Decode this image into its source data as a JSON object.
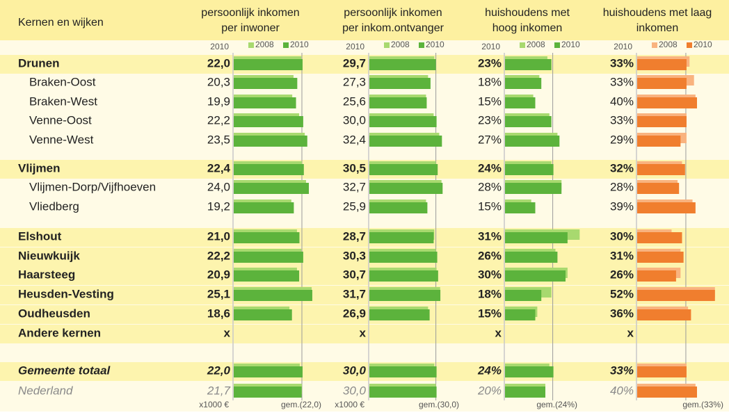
{
  "header": {
    "row_label": "Kernen en wijken",
    "columns": [
      {
        "title": [
          "persoonlijk inkomen",
          "per inwoner"
        ],
        "year_label": "2010",
        "legend": [
          "2008",
          "2010"
        ],
        "colors": [
          "#a8d96f",
          "#5cb33c"
        ],
        "unit": "x1000 €",
        "average": "gem.(22,0)"
      },
      {
        "title": [
          "persoonlijk inkomen",
          "per inkom.ontvanger"
        ],
        "year_label": "2010",
        "legend": [
          "2008",
          "2010"
        ],
        "colors": [
          "#a8d96f",
          "#5cb33c"
        ],
        "unit": "x1000 €",
        "average": "gem.(30,0)"
      },
      {
        "title": [
          "huishoudens met",
          "hoog inkomen"
        ],
        "year_label": "2010",
        "legend": [
          "2008",
          "2010"
        ],
        "colors": [
          "#a8d96f",
          "#5cb33c"
        ],
        "average": "gem.(24%)"
      },
      {
        "title": [
          "huishoudens met laag",
          "inkomen"
        ],
        "year_label": "2010",
        "legend": [
          "2008",
          "2010"
        ],
        "colors": [
          "#f9b37f",
          "#f07e2e"
        ],
        "average": "gem.(33%)"
      }
    ]
  },
  "rows": [
    {
      "name": "Drunen",
      "style": "kern",
      "cells": [
        {
          "value": 22.0,
          "label": "22,0",
          "v2008": 21.6
        },
        {
          "value": 29.7,
          "label": "29,7",
          "v2008": 29.0
        },
        {
          "value": 23,
          "label": "23%",
          "v2008": 21
        },
        {
          "value": 33,
          "label": "33%",
          "v2008": 35
        }
      ]
    },
    {
      "name": "Braken-Oost",
      "style": "wijk",
      "cells": [
        {
          "value": 20.3,
          "label": "20,3",
          "v2008": 19.1
        },
        {
          "value": 27.3,
          "label": "27,3",
          "v2008": 26.2
        },
        {
          "value": 18,
          "label": "18%",
          "v2008": 17
        },
        {
          "value": 33,
          "label": "33%",
          "v2008": 38
        }
      ]
    },
    {
      "name": "Braken-West",
      "style": "wijk",
      "cells": [
        {
          "value": 19.9,
          "label": "19,9",
          "v2008": 18.7
        },
        {
          "value": 25.6,
          "label": "25,6",
          "v2008": 25.3
        },
        {
          "value": 15,
          "label": "15%",
          "v2008": 14
        },
        {
          "value": 40,
          "label": "40%",
          "v2008": 39
        }
      ]
    },
    {
      "name": "Venne-Oost",
      "style": "wijk",
      "cells": [
        {
          "value": 22.2,
          "label": "22,2",
          "v2008": 20.9
        },
        {
          "value": 30.0,
          "label": "30,0",
          "v2008": 28.7
        },
        {
          "value": 23,
          "label": "23%",
          "v2008": 22
        },
        {
          "value": 33,
          "label": "33%",
          "v2008": 33
        }
      ]
    },
    {
      "name": "Venne-West",
      "style": "wijk",
      "cells": [
        {
          "value": 23.5,
          "label": "23,5",
          "v2008": 22.7
        },
        {
          "value": 32.4,
          "label": "32,4",
          "v2008": 31.2
        },
        {
          "value": 27,
          "label": "27%",
          "v2008": 26
        },
        {
          "value": 29,
          "label": "29%",
          "v2008": 33
        }
      ]
    },
    {
      "name": "Vlijmen",
      "style": "kern",
      "cells": [
        {
          "value": 22.4,
          "label": "22,4",
          "v2008": 21.8
        },
        {
          "value": 30.5,
          "label": "30,5",
          "v2008": 29.7
        },
        {
          "value": 24,
          "label": "24%",
          "v2008": 23
        },
        {
          "value": 32,
          "label": "32%",
          "v2008": 30
        }
      ]
    },
    {
      "name": "Vlijmen-Dorp/Vijfhoeven",
      "style": "wijk",
      "cells": [
        {
          "value": 24.0,
          "label": "24,0",
          "v2008": 23.1
        },
        {
          "value": 32.7,
          "label": "32,7",
          "v2008": 32.2
        },
        {
          "value": 28,
          "label": "28%",
          "v2008": 28
        },
        {
          "value": 28,
          "label": "28%",
          "v2008": 27
        }
      ]
    },
    {
      "name": "Vliedberg",
      "style": "wijk",
      "cells": [
        {
          "value": 19.2,
          "label": "19,2",
          "v2008": 18.4
        },
        {
          "value": 25.9,
          "label": "25,9",
          "v2008": 25.3
        },
        {
          "value": 15,
          "label": "15%",
          "v2008": 13
        },
        {
          "value": 39,
          "label": "39%",
          "v2008": 37
        }
      ]
    },
    {
      "name": "Elshout",
      "style": "kern",
      "cells": [
        {
          "value": 21.0,
          "label": "21,0",
          "v2008": 20.2
        },
        {
          "value": 28.7,
          "label": "28,7",
          "v2008": 29.0
        },
        {
          "value": 31,
          "label": "31%",
          "v2008": 37
        },
        {
          "value": 30,
          "label": "30%",
          "v2008": 23
        }
      ]
    },
    {
      "name": "Nieuwkuijk",
      "style": "kern",
      "cells": [
        {
          "value": 22.2,
          "label": "22,2",
          "v2008": 21.6
        },
        {
          "value": 30.3,
          "label": "30,3",
          "v2008": 29.7
        },
        {
          "value": 26,
          "label": "26%",
          "v2008": 25
        },
        {
          "value": 31,
          "label": "31%",
          "v2008": 29
        }
      ]
    },
    {
      "name": "Haarsteeg",
      "style": "kern",
      "cells": [
        {
          "value": 20.9,
          "label": "20,9",
          "v2008": 20.2
        },
        {
          "value": 30.7,
          "label": "30,7",
          "v2008": 30.0
        },
        {
          "value": 30,
          "label": "30%",
          "v2008": 31
        },
        {
          "value": 26,
          "label": "26%",
          "v2008": 29
        }
      ]
    },
    {
      "name": "Heusden-Vesting",
      "style": "kern",
      "cells": [
        {
          "value": 25.1,
          "label": "25,1",
          "v2008": 24.9
        },
        {
          "value": 31.7,
          "label": "31,7",
          "v2008": 31.6
        },
        {
          "value": 18,
          "label": "18%",
          "v2008": 23
        },
        {
          "value": 52,
          "label": "52%",
          "v2008": 52
        }
      ]
    },
    {
      "name": "Oudheusden",
      "style": "kern",
      "cells": [
        {
          "value": 18.6,
          "label": "18,6",
          "v2008": 17.8
        },
        {
          "value": 26.9,
          "label": "26,9",
          "v2008": 26.2
        },
        {
          "value": 15,
          "label": "15%",
          "v2008": 16
        },
        {
          "value": 36,
          "label": "36%",
          "v2008": 34
        }
      ]
    },
    {
      "name": "Andere kernen",
      "style": "kern",
      "cells": [
        {
          "label": "x"
        },
        {
          "label": "x"
        },
        {
          "label": "x"
        },
        {
          "label": "x"
        }
      ]
    },
    {
      "name": "Gemeente totaal",
      "style": "total",
      "cells": [
        {
          "value": 22.0,
          "label": "22,0",
          "v2008": 21.1
        },
        {
          "value": 30.0,
          "label": "30,0",
          "v2008": 29.0
        },
        {
          "value": 24,
          "label": "24%",
          "v2008": 22
        },
        {
          "value": 33,
          "label": "33%",
          "v2008": 33
        }
      ]
    },
    {
      "name": "Nederland",
      "style": "nl",
      "cells": [
        {
          "value": 21.7,
          "label": "21,7",
          "v2008": 21.8
        },
        {
          "value": 30.0,
          "label": "30,0",
          "v2008": 29.7
        },
        {
          "value": 20,
          "label": "20%",
          "v2008": 20
        },
        {
          "value": 40,
          "label": "40%",
          "v2008": 39
        }
      ]
    }
  ]
}
